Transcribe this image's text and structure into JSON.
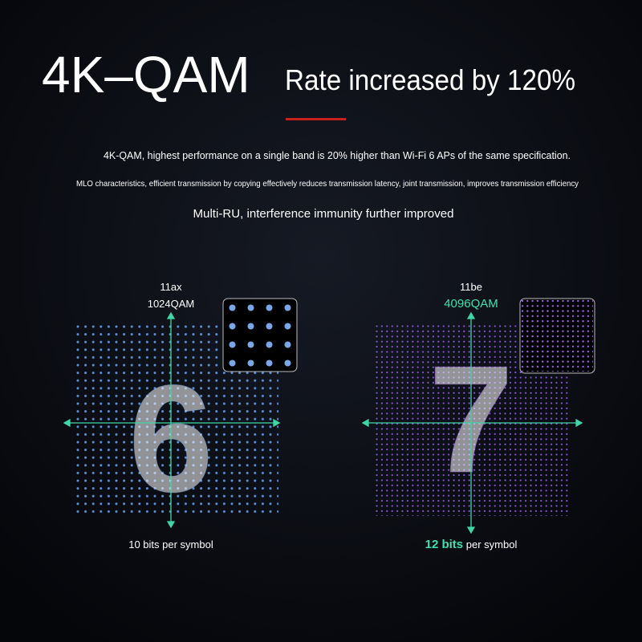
{
  "header": {
    "title": "4K–QAM",
    "subtitle": "Rate increased by 120%"
  },
  "features": [
    "4K-QAM, highest performance on a single band is 20% higher than Wi-Fi 6 APs of the same specification.",
    "MLO characteristics, efficient transmission by copying effectively reduces transmission latency, joint transmission, improves transmission efficiency",
    "Multi-RU, interference immunity further improved"
  ],
  "panels": [
    {
      "standard": "11ax",
      "modulation": "1024QAM",
      "digit": "6",
      "bits": "10 bits",
      "suffix": " per symbol"
    },
    {
      "standard": "11be",
      "modulation": "4096QAM",
      "digit": "7",
      "bits": "12 bits",
      "suffix": " per symbol"
    }
  ]
}
